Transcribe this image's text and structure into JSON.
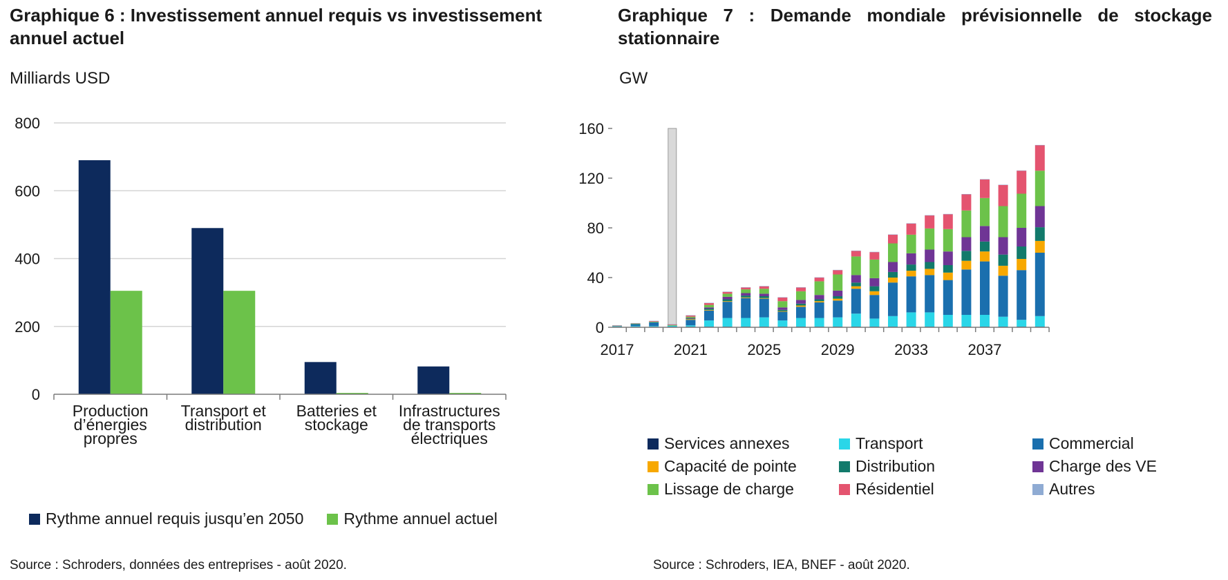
{
  "chart_data": [
    {
      "type": "bar",
      "title": "Graphique 6 : Investissement annuel requis vs investissement annuel actuel",
      "unit_label": "Milliards USD",
      "categories": [
        "Production\nd’énergies\npropres",
        "Transport et\ndistribution",
        "Batteries et\nstockage",
        "Infrastructures\nde transports\nélectriques"
      ],
      "series": [
        {
          "name": "Rythme annuel requis jusqu’en 2050",
          "color": "#0d2a5c",
          "values": [
            690,
            490,
            95,
            82
          ]
        },
        {
          "name": "Rythme annuel actuel",
          "color": "#6cc24a",
          "values": [
            305,
            305,
            4,
            4
          ]
        }
      ],
      "ylim": [
        0,
        800
      ],
      "yticks": [
        "0",
        "200",
        "400",
        "600",
        "800"
      ],
      "grid": true,
      "legend_position": "bottom",
      "source": "Source : Schroders, données des entreprises - août 2020."
    },
    {
      "type": "bar",
      "stacked": true,
      "title": "Graphique 7 : Demande mondiale prévisionnelle de stockage stationnaire",
      "unit_label": "GW",
      "x": [
        2017,
        2018,
        2019,
        2020,
        2021,
        2022,
        2023,
        2024,
        2025,
        2026,
        2027,
        2028,
        2029,
        2030,
        2031,
        2032,
        2033,
        2034,
        2035,
        2036,
        2037,
        2038,
        2039,
        2040
      ],
      "xticks": [
        "2017",
        "2021",
        "2025",
        "2029",
        "2033",
        "2037"
      ],
      "ylim": [
        0,
        160
      ],
      "yticks": [
        "0",
        "40",
        "80",
        "120",
        "160"
      ],
      "highlight_year": 2020,
      "legend_position": "bottom",
      "series": [
        {
          "name": "Services annexes",
          "color": "#0d2a5c",
          "values": [
            0.5,
            0.5,
            0.5,
            0.5,
            0.5,
            0.5,
            0.5,
            0.5,
            0.5,
            0.5,
            0.5,
            0.5,
            0.5,
            0.5,
            0.5,
            0.5,
            0.5,
            0.5,
            0.5,
            0.5,
            0.5,
            0.5,
            0.5,
            0.5
          ]
        },
        {
          "name": "Transport",
          "color": "#2ad6e8",
          "values": [
            0.2,
            0.5,
            0.5,
            0.8,
            1.0,
            5.0,
            7.0,
            7.0,
            7.5,
            5.0,
            7.0,
            7.0,
            7.5,
            10.5,
            6.5,
            8.5,
            11.5,
            11.5,
            9.5,
            9.5,
            9.5,
            8.0,
            5.5,
            8.5
          ]
        },
        {
          "name": "Commercial",
          "color": "#1a6fae",
          "values": [
            0.3,
            1.5,
            3.0,
            0.0,
            4.5,
            8.0,
            13.0,
            16.0,
            15.0,
            7.0,
            9.0,
            12.5,
            13.5,
            20.0,
            19.0,
            27.0,
            29.0,
            30.0,
            28.0,
            36.5,
            43.0,
            33.0,
            40.0,
            51.0
          ]
        },
        {
          "name": "Capacité de pointe",
          "color": "#f7a800",
          "values": [
            0,
            0,
            0,
            0,
            0.5,
            0.5,
            0.5,
            0.5,
            0.5,
            0.5,
            1.0,
            1.0,
            1.5,
            2.0,
            3.0,
            4.0,
            4.5,
            5.0,
            6.0,
            7.0,
            8.0,
            8.0,
            9.0,
            9.5
          ]
        },
        {
          "name": "Distribution",
          "color": "#127a6b",
          "values": [
            0,
            0,
            0,
            0,
            0.5,
            1.0,
            1.5,
            1.5,
            1.5,
            1.0,
            1.5,
            1.5,
            2.0,
            3.0,
            4.0,
            4.5,
            5.0,
            5.5,
            6.0,
            8.0,
            8.0,
            9.0,
            10.0,
            11.0
          ]
        },
        {
          "name": "Charge des VE",
          "color": "#6f3595",
          "values": [
            0,
            0,
            0,
            0,
            0.5,
            1.0,
            2.0,
            2.0,
            2.0,
            2.0,
            3.0,
            3.5,
            4.5,
            6.0,
            6.5,
            8.0,
            9.0,
            10.0,
            11.0,
            11.0,
            12.5,
            14.0,
            15.0,
            17.0
          ]
        },
        {
          "name": "Lissage de charge",
          "color": "#6cc24a",
          "values": [
            0.3,
            0.5,
            0.5,
            0.5,
            1.0,
            2.0,
            2.5,
            3.0,
            4.0,
            5.0,
            7.0,
            11.0,
            13.0,
            15.0,
            15.0,
            15.0,
            15.0,
            17.0,
            18.0,
            21.5,
            22.5,
            25.0,
            27.5,
            28.5
          ]
        },
        {
          "name": "Résidentiel",
          "color": "#e4546f",
          "values": [
            0.2,
            0.2,
            0.5,
            0.5,
            1.0,
            1.5,
            1.5,
            1.5,
            2.0,
            3.0,
            3.0,
            3.0,
            3.5,
            4.5,
            6.0,
            7.0,
            9.0,
            10.5,
            12.0,
            13.0,
            15.0,
            17.0,
            18.5,
            20.5
          ]
        },
        {
          "name": "Autres",
          "color": "#8fabd3",
          "values": [
            0.2,
            0.2,
            0.2,
            0.2,
            0.2,
            0.2,
            0.2,
            0.2,
            0.2,
            0.2,
            0.2,
            0.2,
            0.2,
            0.2,
            0.2,
            0.2,
            0.2,
            0.2,
            0.2,
            0.2,
            0.2,
            0.2,
            0.2,
            0.2
          ]
        }
      ],
      "source": "Source : Schroders, IEA, BNEF - août 2020."
    }
  ]
}
